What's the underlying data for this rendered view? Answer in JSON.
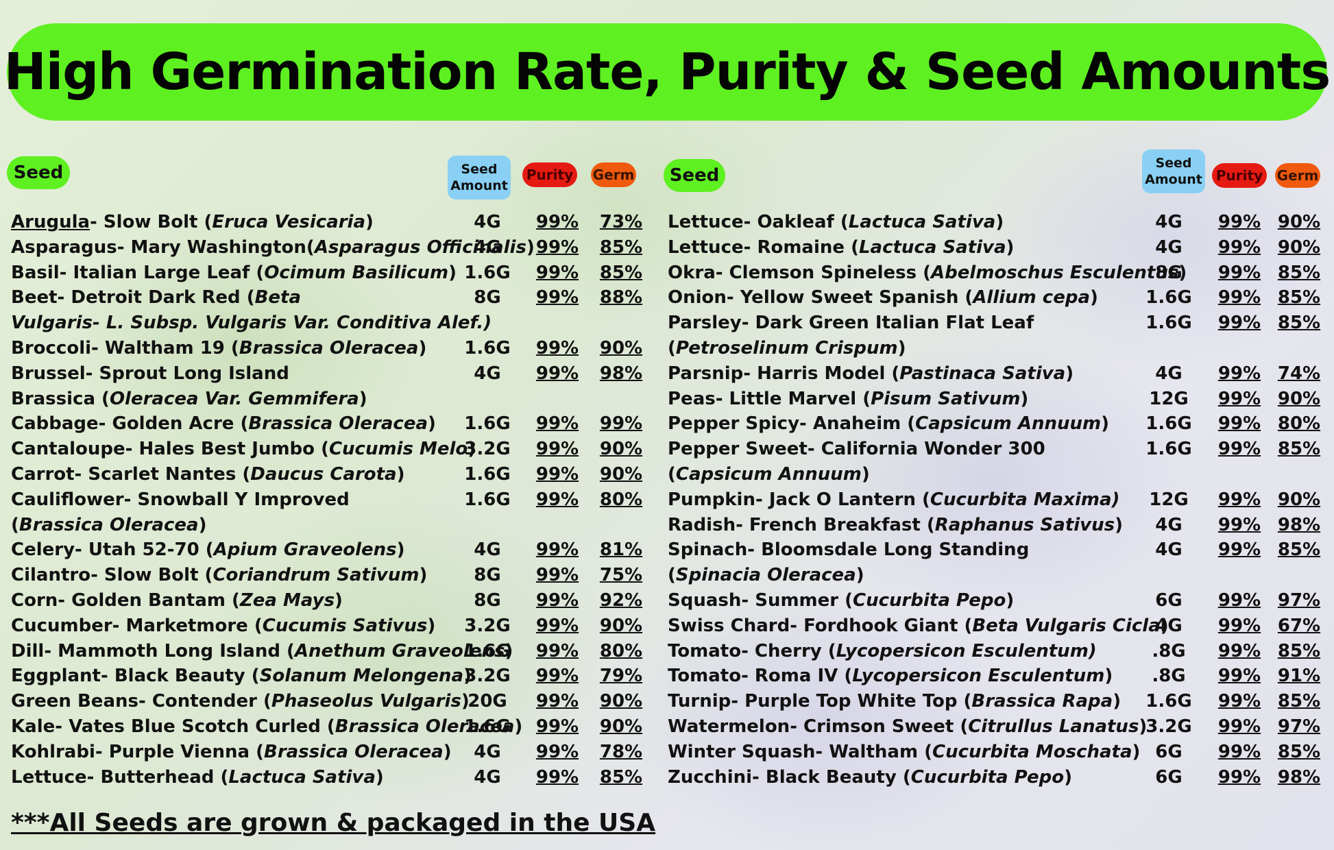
{
  "title": "High Germination Rate, Purity & Seed Amounts",
  "headers": {
    "seed": "Seed",
    "amount_line1": "Seed",
    "amount_line2": "Amount",
    "purity": "Purity",
    "germ": "Germ"
  },
  "left_rows": [
    {
      "pre": "",
      "ul": "Arugula",
      "mid": "- Slow Bolt (",
      "sci": "Eruca Vesicaria",
      "post": ")",
      "amount": "4G",
      "purity": "99%",
      "germ": "73%"
    },
    {
      "pre": "Asparagus- Mary Washington(",
      "ul": "",
      "mid": "",
      "sci": "Asparagus Officinalis",
      "post": ")",
      "amount": "4G",
      "purity": "99%",
      "germ": "85%"
    },
    {
      "pre": "Basil- Italian Large Leaf (",
      "ul": "",
      "mid": "",
      "sci": "Ocimum Basilicum",
      "post": ")",
      "amount": "1.6G",
      "purity": "99%",
      "germ": "85%"
    },
    {
      "pre": "Beet- Detroit Dark Red (",
      "ul": "",
      "mid": "",
      "sci": "Beta",
      "post": "",
      "amount": "8G",
      "purity": "99%",
      "germ": "88%",
      "cont": {
        "pre": "",
        "sci": "Vulgaris- L. Subsp. Vulgaris Var. Conditiva Alef.)",
        "post": ""
      }
    },
    {
      "pre": "Broccoli- Waltham 19 (",
      "ul": "",
      "mid": "",
      "sci": "Brassica Oleracea",
      "post": ")",
      "amount": "1.6G",
      "purity": "99%",
      "germ": "90%"
    },
    {
      "pre": "Brussel- Sprout Long Island",
      "ul": "",
      "mid": "",
      "sci": "",
      "post": "",
      "amount": "4G",
      "purity": "99%",
      "germ": "98%",
      "cont": {
        "pre": "Brassica (",
        "sci": "Oleracea Var. Gemmifera",
        "post": ")"
      }
    },
    {
      "pre": "Cabbage- Golden Acre (",
      "ul": "",
      "mid": "",
      "sci": "Brassica Oleracea",
      "post": ")",
      "amount": "1.6G",
      "purity": "99%",
      "germ": "99%"
    },
    {
      "pre": "Cantaloupe- Hales Best Jumbo (",
      "ul": "",
      "mid": "",
      "sci": "Cucumis Melo",
      "post": ")",
      "amount": "3.2G",
      "purity": "99%",
      "germ": "90%"
    },
    {
      "pre": "Carrot- Scarlet Nantes (",
      "ul": "",
      "mid": "",
      "sci": "Daucus Carota",
      "post": ")",
      "amount": "1.6G",
      "purity": "99%",
      "germ": "90%"
    },
    {
      "pre": "Cauliflower- Snowball Y Improved",
      "ul": "",
      "mid": "",
      "sci": "",
      "post": "",
      "amount": "1.6G",
      "purity": "99%",
      "germ": "80%",
      "cont": {
        "pre": "(",
        "sci": "Brassica Oleracea",
        "post": ")"
      }
    },
    {
      "pre": "Celery- Utah 52-70 (",
      "ul": "",
      "mid": "",
      "sci": "Apium Graveolens",
      "post": ")",
      "amount": "4G",
      "purity": "99%",
      "germ": "81%"
    },
    {
      "pre": "Cilantro- Slow Bolt (",
      "ul": "",
      "mid": "",
      "sci": "Coriandrum Sativum",
      "post": ")",
      "amount": "8G",
      "purity": "99%",
      "germ": "75%"
    },
    {
      "pre": "Corn- Golden Bantam (",
      "ul": "",
      "mid": "",
      "sci": "Zea Mays",
      "post": ")",
      "amount": "8G",
      "purity": "99%",
      "germ": "92%"
    },
    {
      "pre": "Cucumber- Marketmore (",
      "ul": "",
      "mid": "",
      "sci": "Cucumis Sativus",
      "post": ")",
      "amount": "3.2G",
      "purity": "99%",
      "germ": "90%"
    },
    {
      "pre": "Dill- Mammoth Long Island (",
      "ul": "",
      "mid": "",
      "sci": "Anethum Graveolens",
      "post": ")",
      "amount": "1.6G",
      "purity": "99%",
      "germ": "80%"
    },
    {
      "pre": "Eggplant- Black Beauty (",
      "ul": "",
      "mid": "",
      "sci": "Solanum Melongena",
      "post": ")",
      "amount": "3.2G",
      "purity": "99%",
      "germ": "79%"
    },
    {
      "pre": "Green Beans- Contender (",
      "ul": "",
      "mid": "",
      "sci": "Phaseolus Vulgaris",
      "post": ")",
      "amount": "20G",
      "purity": "99%",
      "germ": "90%"
    },
    {
      "pre": "Kale- Vates Blue Scotch Curled (",
      "ul": "",
      "mid": "",
      "sci": "Brassica Oleracea",
      "post": ")",
      "amount": "1.6G",
      "purity": "99%",
      "germ": "90%"
    },
    {
      "pre": "Kohlrabi- Purple Vienna (",
      "ul": "",
      "mid": "",
      "sci": "Brassica Oleracea",
      "post": ")",
      "amount": "4G",
      "purity": "99%",
      "germ": "78%"
    },
    {
      "pre": "Lettuce- Butterhead (",
      "ul": "",
      "mid": "",
      "sci": "Lactuca Sativa",
      "post": ")",
      "amount": "4G",
      "purity": "99%",
      "germ": "85%"
    }
  ],
  "right_rows": [
    {
      "pre": "Lettuce- Oakleaf (",
      "ul": "",
      "mid": "",
      "sci": "Lactuca Sativa",
      "post": ")",
      "amount": "4G",
      "purity": "99%",
      "germ": "90%"
    },
    {
      "pre": "Lettuce- Romaine (",
      "ul": "",
      "mid": "",
      "sci": "Lactuca Sativa",
      "post": ")",
      "amount": "4G",
      "purity": "99%",
      "germ": "90%"
    },
    {
      "pre": "Okra- Clemson Spineless (",
      "ul": "",
      "mid": "",
      "sci": "Abelmoschus Esculentus",
      "post": ")",
      "amount": "8G",
      "purity": "99%",
      "germ": "85%"
    },
    {
      "pre": "Onion- Yellow Sweet Spanish (",
      "ul": "",
      "mid": "",
      "sci": "Allium cepa",
      "post": ")",
      "amount": "1.6G",
      "purity": "99%",
      "germ": "85%"
    },
    {
      "pre": "Parsley- Dark Green Italian Flat Leaf",
      "ul": "",
      "mid": "",
      "sci": "",
      "post": "",
      "amount": "1.6G",
      "purity": "99%",
      "germ": "85%",
      "cont": {
        "pre": "(",
        "sci": "Petroselinum Crispum",
        "post": ")"
      }
    },
    {
      "pre": "Parsnip- Harris Model (",
      "ul": "",
      "mid": "",
      "sci": "Pastinaca Sativa",
      "post": ")",
      "amount": "4G",
      "purity": "99%",
      "germ": "74%"
    },
    {
      "pre": "Peas- Little Marvel (",
      "ul": "",
      "mid": "",
      "sci": "Pisum Sativum",
      "post": ")",
      "amount": "12G",
      "purity": "99%",
      "germ": "90%"
    },
    {
      "pre": "Pepper Spicy- Anaheim (",
      "ul": "",
      "mid": "",
      "sci": "Capsicum Annuum",
      "post": ")",
      "amount": "1.6G",
      "purity": "99%",
      "germ": "80%"
    },
    {
      "pre": "Pepper Sweet- California Wonder 300",
      "ul": "",
      "mid": "",
      "sci": "",
      "post": "",
      "amount": "1.6G",
      "purity": "99%",
      "germ": "85%",
      "cont": {
        "pre": "(",
        "sci": "Capsicum Annuum",
        "post": ")"
      }
    },
    {
      "pre": "Pumpkin- Jack O Lantern (",
      "ul": "",
      "mid": "",
      "sci": "Cucurbita Maxima)",
      "post": "",
      "amount": "12G",
      "purity": "99%",
      "germ": "90%"
    },
    {
      "pre": "Radish- French Breakfast (",
      "ul": "",
      "mid": "",
      "sci": "Raphanus Sativus",
      "post": ")",
      "amount": "4G",
      "purity": "99%",
      "germ": "98%"
    },
    {
      "pre": "Spinach- Bloomsdale Long Standing",
      "ul": "",
      "mid": "",
      "sci": "",
      "post": "",
      "amount": "4G",
      "purity": "99%",
      "germ": "85%",
      "cont": {
        "pre": "(",
        "sci": "Spinacia Oleracea",
        "post": ")"
      }
    },
    {
      "pre": "Squash- Summer (",
      "ul": "",
      "mid": "",
      "sci": "Cucurbita Pepo",
      "post": ")",
      "amount": "6G",
      "purity": "99%",
      "germ": "97%"
    },
    {
      "pre": "Swiss Chard- Fordhook Giant (",
      "ul": "",
      "mid": "",
      "sci": "Beta Vulgaris Cicla",
      "post": ")",
      "amount": "4G",
      "purity": "99%",
      "germ": "67%"
    },
    {
      "pre": "Tomato- Cherry (",
      "ul": "",
      "mid": "",
      "sci": "Lycopersicon Esculentum)",
      "post": "",
      "amount": ".8G",
      "purity": "99%",
      "germ": "85%"
    },
    {
      "pre": "Tomato- Roma IV  (",
      "ul": "",
      "mid": "",
      "sci": "Lycopersicon Esculentum",
      "post": ")",
      "amount": ".8G",
      "purity": "99%",
      "germ": "91%"
    },
    {
      "pre": "Turnip- Purple Top White Top (",
      "ul": "",
      "mid": "",
      "sci": "Brassica Rapa",
      "post": ")",
      "amount": "1.6G",
      "purity": "99%",
      "germ": "85%"
    },
    {
      "pre": "Watermelon- Crimson Sweet (",
      "ul": "",
      "mid": "",
      "sci": "Citrullus Lanatus",
      "post": ")",
      "amount": "3.2G",
      "purity": "99%",
      "germ": "97%"
    },
    {
      "pre": "Winter Squash- Waltham (",
      "ul": "",
      "mid": "",
      "sci": "Cucurbita Moschata",
      "post": ")",
      "amount": "6G",
      "purity": "99%",
      "germ": "85%"
    },
    {
      "pre": "Zucchini-  Black Beauty (",
      "ul": "",
      "mid": "",
      "sci": "Cucurbita Pepo",
      "post": ")",
      "amount": "6G",
      "purity": "99%",
      "germ": "98%"
    }
  ],
  "footer": "***All Seeds are grown & packaged in the USA",
  "colors": {
    "banner": "#5ef021",
    "seed_pill": "#5ef021",
    "amount_pill": "#89d0f4",
    "purity_pill": "#e51a12",
    "germ_pill": "#f05a0f"
  }
}
